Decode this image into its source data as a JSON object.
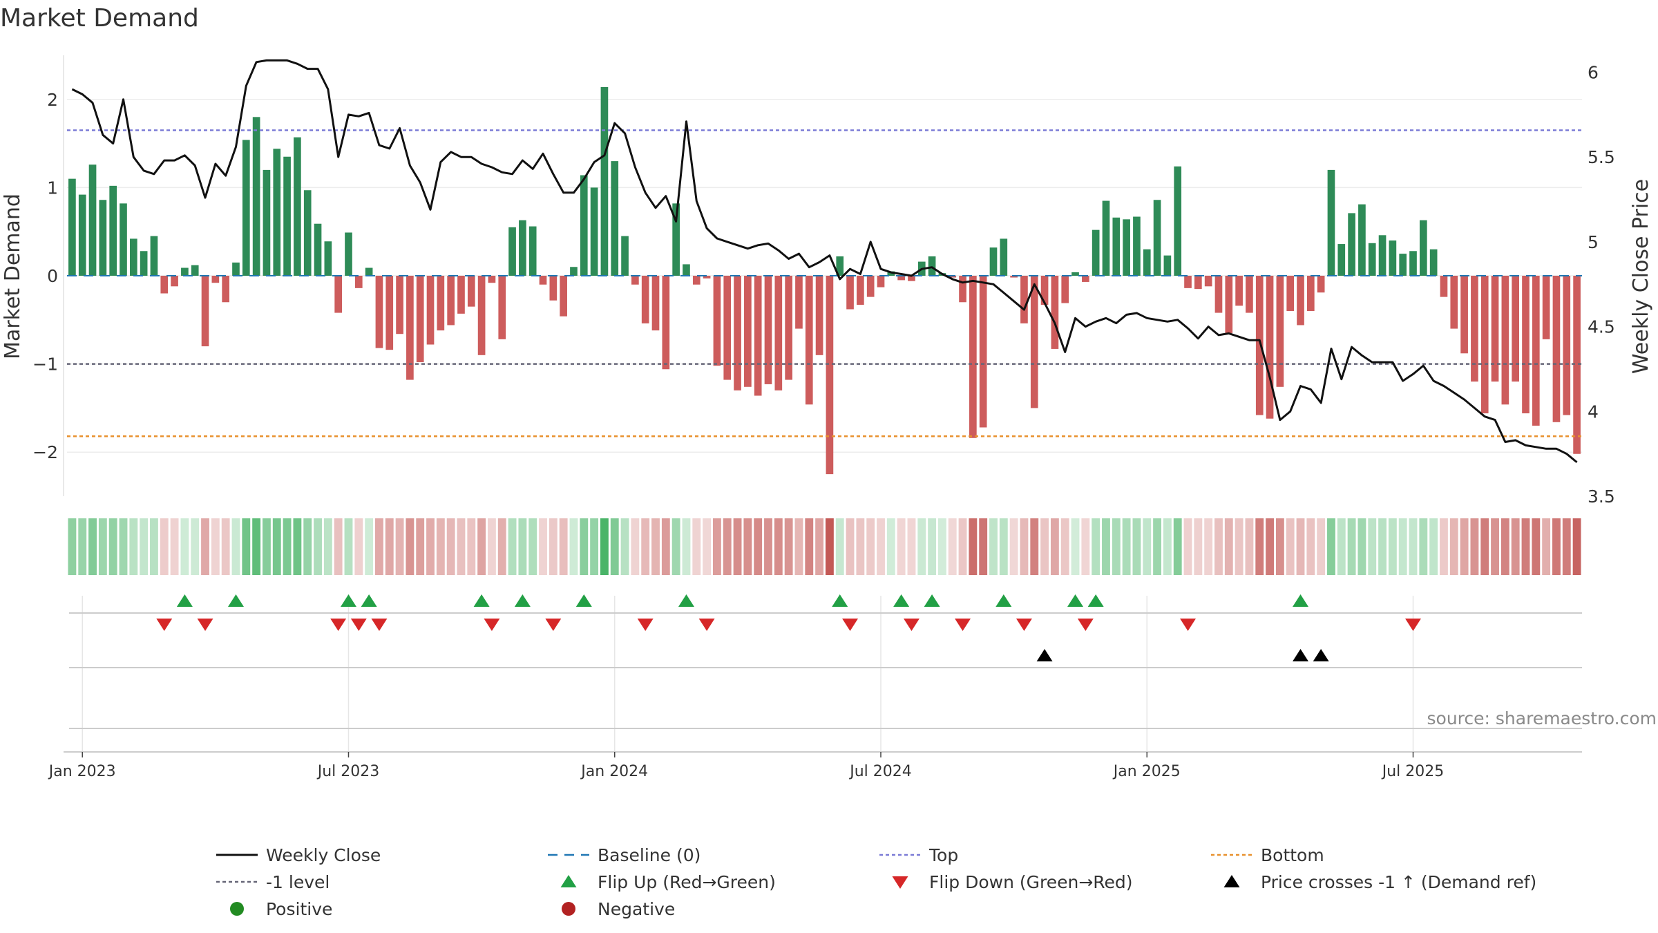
{
  "chart_data": {
    "type": "bar",
    "title": "Market Demand",
    "ylabel_left": "Market Demand",
    "ylabel_right": "Weekly Close Price",
    "ylim_left": [
      -2.5,
      2.5
    ],
    "ylim_right": [
      3.5,
      6.1
    ],
    "yticks_left": [
      {
        "v": 2,
        "label": "2"
      },
      {
        "v": 1,
        "label": "1"
      },
      {
        "v": 0,
        "label": "0"
      },
      {
        "v": -1,
        "label": "−1"
      },
      {
        "v": -2,
        "label": "−2"
      }
    ],
    "yticks_right": [
      {
        "v": 6,
        "label": "6"
      },
      {
        "v": 5.5,
        "label": "5.5"
      },
      {
        "v": 5,
        "label": "5"
      },
      {
        "v": 4.5,
        "label": "4.5"
      },
      {
        "v": 4,
        "label": "4"
      },
      {
        "v": 3.5,
        "label": "3.5"
      }
    ],
    "xticks": [
      {
        "w": 1.5,
        "label": "Jan 2023"
      },
      {
        "w": 27.5,
        "label": "Jul 2023"
      },
      {
        "w": 53.5,
        "label": "Jan 2024"
      },
      {
        "w": 79.5,
        "label": "Jul 2024"
      },
      {
        "w": 105.5,
        "label": "Jan 2025"
      },
      {
        "w": 131.5,
        "label": "Jul 2025"
      }
    ],
    "reference_lines": {
      "top": 1.65,
      "minus_one": -1.0,
      "bottom": -1.82,
      "baseline": 0
    },
    "demand": [
      1.1,
      0.92,
      1.26,
      0.86,
      1.02,
      0.82,
      0.42,
      0.28,
      0.45,
      -0.2,
      -0.12,
      0.09,
      0.12,
      -0.8,
      -0.08,
      -0.3,
      0.15,
      1.54,
      1.8,
      1.2,
      1.44,
      1.35,
      1.57,
      0.97,
      0.59,
      0.39,
      -0.42,
      0.49,
      -0.14,
      0.09,
      -0.82,
      -0.84,
      -0.66,
      -1.18,
      -0.98,
      -0.78,
      -0.62,
      -0.56,
      -0.43,
      -0.35,
      -0.9,
      -0.08,
      -0.72,
      0.55,
      0.63,
      0.56,
      -0.1,
      -0.28,
      -0.46,
      0.1,
      1.14,
      1.0,
      2.14,
      1.3,
      0.45,
      -0.1,
      -0.54,
      -0.62,
      -1.06,
      0.82,
      0.13,
      -0.1,
      -0.03,
      -1.02,
      -1.18,
      -1.3,
      -1.26,
      -1.36,
      -1.23,
      -1.3,
      -1.18,
      -0.6,
      -1.46,
      -0.9,
      -2.25,
      0.22,
      -0.38,
      -0.33,
      -0.24,
      -0.13,
      0.05,
      -0.05,
      -0.06,
      0.16,
      0.22,
      0.03,
      -0.02,
      -0.3,
      -1.84,
      -1.72,
      0.32,
      0.42,
      -0.02,
      -0.54,
      -1.5,
      -0.33,
      -0.83,
      -0.31,
      0.04,
      -0.07,
      0.52,
      0.85,
      0.66,
      0.64,
      0.67,
      0.3,
      0.86,
      0.23,
      1.24,
      -0.14,
      -0.15,
      -0.12,
      -0.42,
      -0.65,
      -0.34,
      -0.42,
      -1.58,
      -1.62,
      -1.26,
      -0.4,
      -0.56,
      -0.4,
      -0.19,
      1.2,
      0.36,
      0.71,
      0.81,
      0.37,
      0.46,
      0.4,
      0.25,
      0.28,
      0.63,
      0.3,
      -0.24,
      -0.6,
      -0.88,
      -1.2,
      -1.56,
      -1.2,
      -1.46,
      -1.2,
      -1.56,
      -1.7,
      -0.72,
      -1.66,
      -1.58,
      -2.02
    ],
    "close": [
      5.9,
      5.87,
      5.82,
      5.63,
      5.58,
      5.84,
      5.5,
      5.42,
      5.4,
      5.48,
      5.48,
      5.51,
      5.45,
      5.26,
      5.46,
      5.39,
      5.56,
      5.92,
      6.06,
      6.07,
      6.07,
      6.07,
      6.05,
      6.02,
      6.02,
      5.9,
      5.5,
      5.75,
      5.74,
      5.76,
      5.57,
      5.55,
      5.67,
      5.45,
      5.35,
      5.19,
      5.47,
      5.53,
      5.5,
      5.5,
      5.46,
      5.44,
      5.41,
      5.4,
      5.48,
      5.43,
      5.52,
      5.4,
      5.29,
      5.29,
      5.37,
      5.47,
      5.51,
      5.7,
      5.64,
      5.44,
      5.29,
      5.2,
      5.27,
      5.12,
      5.71,
      5.24,
      5.08,
      5.02,
      5.0,
      4.98,
      4.96,
      4.98,
      4.99,
      4.95,
      4.9,
      4.93,
      4.85,
      4.88,
      4.92,
      4.78,
      4.84,
      4.81,
      5.0,
      4.84,
      4.82,
      4.81,
      4.8,
      4.84,
      4.85,
      4.81,
      4.78,
      4.76,
      4.77,
      4.76,
      4.75,
      4.7,
      4.65,
      4.6,
      4.75,
      4.64,
      4.52,
      4.35,
      4.55,
      4.5,
      4.53,
      4.55,
      4.52,
      4.57,
      4.58,
      4.55,
      4.54,
      4.53,
      4.54,
      4.49,
      4.43,
      4.5,
      4.45,
      4.46,
      4.44,
      4.42,
      4.42,
      4.2,
      3.95,
      4.0,
      4.15,
      4.13,
      4.05,
      4.37,
      4.19,
      4.38,
      4.33,
      4.29,
      4.29,
      4.29,
      4.18,
      4.22,
      4.27,
      4.18,
      4.15,
      4.11,
      4.07,
      4.02,
      3.97,
      3.95,
      3.82,
      3.83,
      3.8,
      3.79,
      3.78,
      3.78,
      3.75,
      3.7
    ],
    "flip_up": [
      11,
      16,
      27,
      29,
      40,
      44,
      50,
      60,
      75,
      81,
      84,
      91,
      98,
      100,
      120
    ],
    "flip_down": [
      9,
      13,
      26,
      28,
      30,
      41,
      47,
      56,
      62,
      76,
      82,
      87,
      93,
      99,
      109,
      131
    ],
    "price_cross_up": [
      95,
      120,
      122
    ],
    "source": "source: sharemaestro.com",
    "legend": [
      {
        "key": "close",
        "label": "Weekly Close"
      },
      {
        "key": "baseline",
        "label": "Baseline (0)"
      },
      {
        "key": "top",
        "label": "Top"
      },
      {
        "key": "bottom",
        "label": "Bottom"
      },
      {
        "key": "minus1",
        "label": "-1 level"
      },
      {
        "key": "flipup",
        "label": "Flip Up (Red→Green)"
      },
      {
        "key": "flipdown",
        "label": "Flip Down (Green→Red)"
      },
      {
        "key": "cross",
        "label": "Price crosses -1 ↑ (Demand ref)"
      },
      {
        "key": "pos",
        "label": "Positive"
      },
      {
        "key": "neg",
        "label": "Negative"
      }
    ],
    "colors": {
      "positive": "#2e8b57",
      "negative": "#cd5c5c",
      "close": "#111111",
      "top": "#7b7bd6",
      "bottom": "#e8912d",
      "minus1": "#666677",
      "baseline": "#1f77b4",
      "flip_up": "#22a045",
      "flip_down": "#d62728",
      "cross": "#000000",
      "legend_pos": "#228b22",
      "legend_neg": "#b22222"
    }
  }
}
